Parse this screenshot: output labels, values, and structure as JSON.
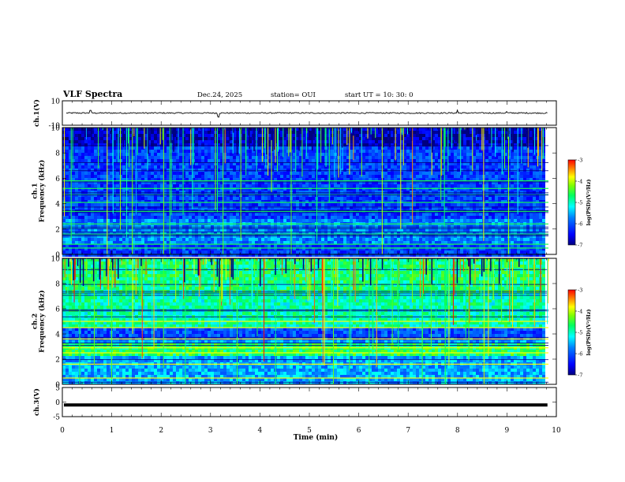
{
  "header": {
    "title": "VLF Spectra",
    "date": "Dec.24, 2025",
    "station": "station= OUI",
    "start_ut": "start  UT  =   10: 30: 0"
  },
  "chart_data": [
    {
      "type": "line",
      "name": "ch1-waveform",
      "ylabel": "ch.1(V)",
      "ylim": [
        -10,
        10
      ],
      "yticks": [
        10,
        -10
      ],
      "xlim": [
        0,
        10
      ],
      "baseline": 0,
      "noise_amplitude": 0.5,
      "spikes": [
        {
          "t": 0.57,
          "v": 2.2
        },
        {
          "t": 3.15,
          "v": -3.0
        },
        {
          "t": 3.17,
          "v": -3.4
        },
        {
          "t": 8.0,
          "v": 2.4
        },
        {
          "t": 9.0,
          "v": 1.2
        }
      ]
    },
    {
      "type": "heatmap",
      "name": "ch1-spectrogram",
      "ylabel": "ch.1 Frequency (kHz)",
      "ylim": [
        0,
        10
      ],
      "yticks": [
        0,
        2,
        4,
        6,
        8,
        10
      ],
      "xlim": [
        0,
        9.84
      ],
      "colorbar": {
        "label": "log(PSD)(V²/Hz)",
        "range": [
          -7,
          -3
        ],
        "ticks": [
          -3,
          -4,
          -5,
          -6,
          -7
        ]
      },
      "dominant_bands_khz": [
        0.5,
        0.8,
        1.6,
        2.4,
        3.4,
        4.1,
        4.7,
        5.2,
        5.8
      ],
      "typical_log_psd": -6.2
    },
    {
      "type": "heatmap",
      "name": "ch2-spectrogram",
      "ylabel": "ch.2 Frequency (kHz)",
      "ylim": [
        0,
        10
      ],
      "yticks": [
        0,
        2,
        4,
        6,
        8,
        10
      ],
      "xlim": [
        0,
        9.84
      ],
      "colorbar": {
        "label": "log(PSD)(V²/Hz)",
        "range": [
          -7,
          -3
        ],
        "ticks": [
          -3,
          -4,
          -5,
          -6,
          -7
        ]
      },
      "dominant_bands_khz": [
        0.5,
        1.6,
        2.5,
        2.9,
        3.6,
        4.5,
        5.0
      ],
      "typical_log_psd": -5.6
    },
    {
      "type": "line",
      "name": "ch3-waveform",
      "ylabel": "ch.3(V)",
      "ylim": [
        -5,
        5
      ],
      "yticks": [
        5,
        0,
        -5
      ],
      "xlim": [
        0,
        10
      ],
      "baseline": -1.0
    }
  ],
  "x_axis": {
    "label": "Time  (min)",
    "range": [
      0,
      10
    ],
    "ticks": [
      0,
      1,
      2,
      3,
      4,
      5,
      6,
      7,
      8,
      9,
      10
    ]
  },
  "colors": {
    "axis": "#000000",
    "background": "#ffffff",
    "colormap": [
      "#00007f",
      "#0000ff",
      "#007fff",
      "#00ffff",
      "#00ff7f",
      "#7fff00",
      "#ffff00",
      "#ff7f00",
      "#ff0000"
    ]
  }
}
